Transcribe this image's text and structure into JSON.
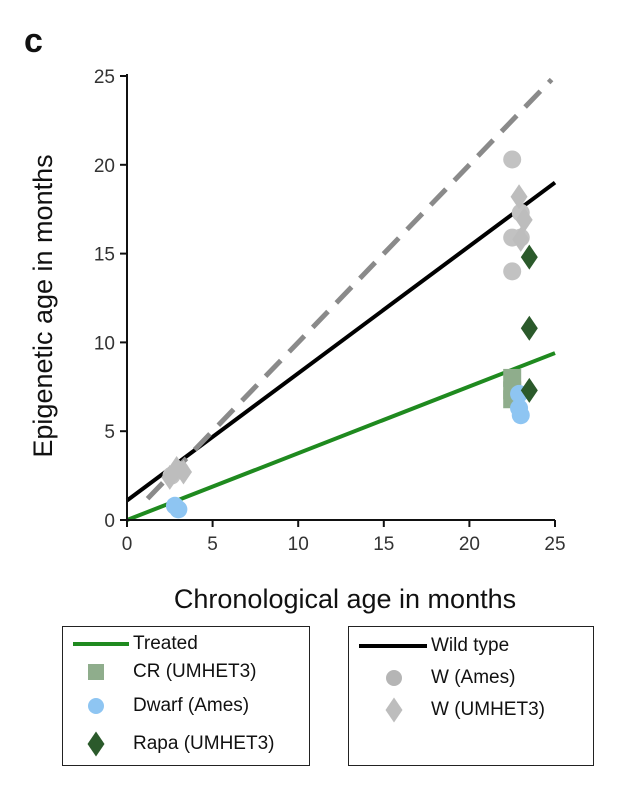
{
  "panel_label": "c",
  "chart_data": {
    "type": "scatter",
    "xlabel": "Chronological age in months",
    "ylabel": "Epigenetic age in months",
    "xlim": [
      0,
      25
    ],
    "ylim": [
      0,
      25
    ],
    "xticks": [
      "0",
      "5",
      "10",
      "15",
      "20",
      "25"
    ],
    "yticks": [
      "0",
      "5",
      "10",
      "15",
      "20",
      "25"
    ],
    "grid": false,
    "lines": [
      {
        "name": "Wild type",
        "color": "#000000",
        "dash": false,
        "x": [
          0,
          25
        ],
        "y": [
          1.1,
          19.0
        ]
      },
      {
        "name": "Treated",
        "color": "#1f8a1f",
        "dash": false,
        "x": [
          0,
          25
        ],
        "y": [
          0.0,
          9.4
        ]
      },
      {
        "name": "",
        "color": "#8a8a8a",
        "dash": true,
        "x": [
          1.2,
          24.8
        ],
        "y": [
          1.2,
          24.8
        ]
      }
    ],
    "series": [
      {
        "name": "W (Ames)",
        "marker": "circle",
        "color": "#c2c2c2",
        "points": [
          [
            2.6,
            2.5
          ],
          [
            3.1,
            2.8
          ],
          [
            22.5,
            20.3
          ],
          [
            22.5,
            15.9
          ],
          [
            22.5,
            14.0
          ],
          [
            23.0,
            15.9
          ],
          [
            23.0,
            17.3
          ]
        ]
      },
      {
        "name": "W (UMHET3)",
        "marker": "diamond",
        "color": "#bdbdbd",
        "points": [
          [
            2.5,
            2.4
          ],
          [
            2.9,
            2.9
          ],
          [
            3.3,
            2.7
          ],
          [
            22.9,
            18.2
          ],
          [
            23.2,
            16.9
          ],
          [
            23.0,
            15.8
          ]
        ]
      },
      {
        "name": "CR (UMHET3)",
        "marker": "square",
        "color": "#8fad8c",
        "points": [
          [
            22.5,
            8.0
          ],
          [
            22.5,
            7.3
          ],
          [
            22.5,
            6.8
          ]
        ]
      },
      {
        "name": "Dwarf (Ames)",
        "marker": "circle",
        "color": "#8ec5f2",
        "points": [
          [
            2.8,
            0.8
          ],
          [
            3.0,
            0.6
          ],
          [
            22.9,
            7.1
          ],
          [
            22.9,
            6.3
          ],
          [
            23.0,
            5.9
          ]
        ]
      },
      {
        "name": "Rapa (UMHET3)",
        "marker": "diamond",
        "color": "#2b5a2b",
        "points": [
          [
            23.5,
            14.8
          ],
          [
            23.5,
            10.8
          ],
          [
            23.5,
            7.3
          ]
        ]
      }
    ],
    "legend": {
      "left": [
        {
          "label": "Treated",
          "kind": "line",
          "color": "#1f8a1f"
        },
        {
          "label": "CR (UMHET3)",
          "kind": "square",
          "color": "#8fad8c"
        },
        {
          "label": "Dwarf (Ames)",
          "kind": "circle",
          "color": "#8ec5f2"
        },
        {
          "label": "Rapa (UMHET3)",
          "kind": "diamond",
          "color": "#2b5a2b"
        }
      ],
      "right": [
        {
          "label": "Wild type",
          "kind": "line",
          "color": "#000000"
        },
        {
          "label": "W (Ames)",
          "kind": "circle",
          "color": "#b5b5b5"
        },
        {
          "label": "W (UMHET3)",
          "kind": "diamond",
          "color": "#bdbdbd"
        }
      ],
      "placement": "bottom"
    }
  }
}
